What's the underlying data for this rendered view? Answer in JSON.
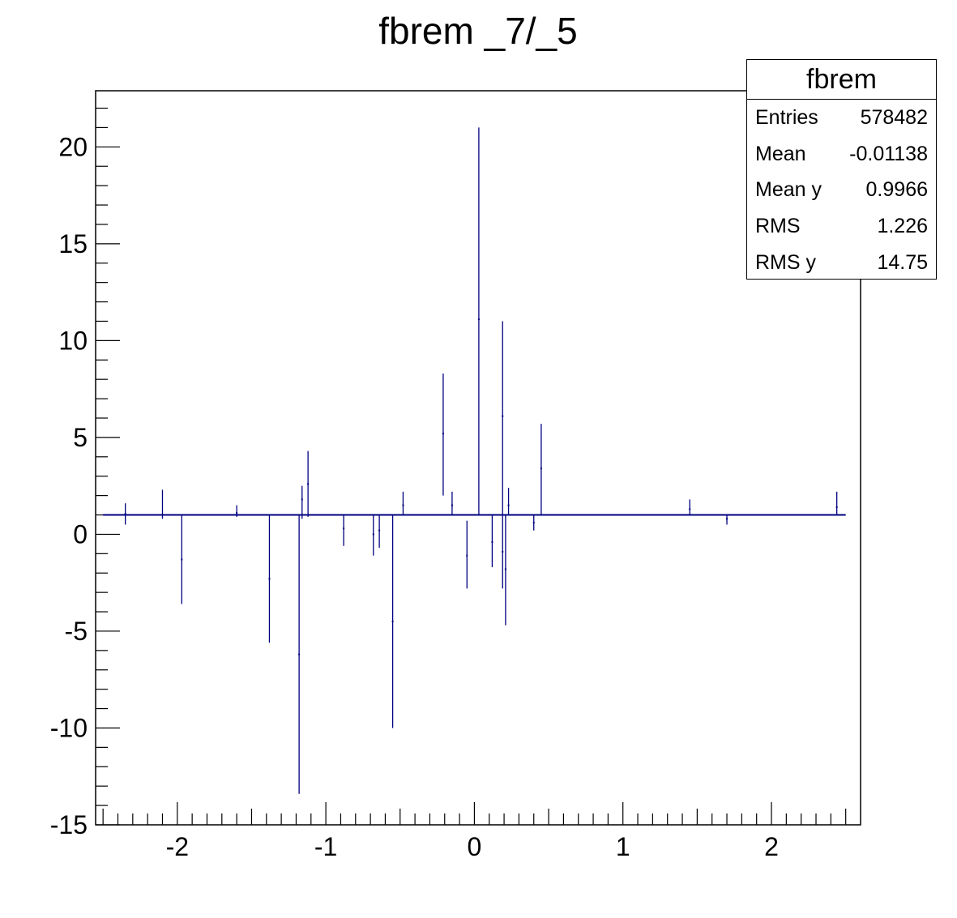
{
  "chart_data": {
    "type": "scatter",
    "title": "fbrem _7/_5",
    "xlabel": "",
    "ylabel": "",
    "xlim": [
      -2.55,
      2.6
    ],
    "ylim": [
      -15,
      22.9
    ],
    "x_ticks": [
      -2,
      -1,
      0,
      1,
      2
    ],
    "x_tick_labels": [
      "-2",
      "-1",
      "0",
      "1",
      "2"
    ],
    "y_ticks": [
      -15,
      -10,
      -5,
      0,
      5,
      10,
      15,
      20
    ],
    "y_tick_labels": [
      "-15",
      "-10",
      "-5",
      "0",
      "5",
      "10",
      "15",
      "20"
    ],
    "grid": false,
    "baseline": {
      "x_start": -2.5,
      "x_end": 2.5,
      "y": 1.0
    },
    "series": [
      {
        "color": "#000080",
        "points": [
          {
            "x": -2.35,
            "y": 1.05,
            "ymin": 0.5,
            "ymax": 1.6
          },
          {
            "x": -2.1,
            "y": 1.0,
            "ymin": 0.8,
            "ymax": 2.3
          },
          {
            "x": -1.97,
            "y": -1.3,
            "ymin": -3.6,
            "ymax": 1.0
          },
          {
            "x": -1.6,
            "y": 1.1,
            "ymin": 0.9,
            "ymax": 1.5
          },
          {
            "x": -1.38,
            "y": -2.3,
            "ymin": -5.6,
            "ymax": 1.0
          },
          {
            "x": -1.18,
            "y": -6.2,
            "ymin": -13.4,
            "ymax": 1.0
          },
          {
            "x": -1.16,
            "y": 1.8,
            "ymin": 0.8,
            "ymax": 2.5
          },
          {
            "x": -1.12,
            "y": 2.6,
            "ymin": 0.9,
            "ymax": 4.3
          },
          {
            "x": -0.88,
            "y": 0.3,
            "ymin": -0.6,
            "ymax": 1.0
          },
          {
            "x": -0.68,
            "y": 0.0,
            "ymin": -1.1,
            "ymax": 1.0
          },
          {
            "x": -0.64,
            "y": 0.2,
            "ymin": -0.7,
            "ymax": 1.0
          },
          {
            "x": -0.55,
            "y": -4.5,
            "ymin": -10.0,
            "ymax": 1.0
          },
          {
            "x": -0.48,
            "y": 1.5,
            "ymin": 1.0,
            "ymax": 2.2
          },
          {
            "x": -0.21,
            "y": 5.2,
            "ymin": 2.0,
            "ymax": 8.3
          },
          {
            "x": -0.15,
            "y": 1.5,
            "ymin": 1.0,
            "ymax": 2.2
          },
          {
            "x": -0.05,
            "y": -1.1,
            "ymin": -2.8,
            "ymax": 0.7
          },
          {
            "x": 0.03,
            "y": 11.1,
            "ymin": 1.0,
            "ymax": 21.0
          },
          {
            "x": 0.12,
            "y": -0.4,
            "ymin": -1.7,
            "ymax": 1.0
          },
          {
            "x": 0.19,
            "y": 6.1,
            "ymin": 1.0,
            "ymax": 11.0
          },
          {
            "x": 0.19,
            "y": -0.9,
            "ymin": -2.8,
            "ymax": 1.0
          },
          {
            "x": 0.21,
            "y": -1.8,
            "ymin": -4.7,
            "ymax": 1.0
          },
          {
            "x": 0.23,
            "y": 1.5,
            "ymin": 1.0,
            "ymax": 2.4
          },
          {
            "x": 0.45,
            "y": 3.4,
            "ymin": 1.0,
            "ymax": 5.7
          },
          {
            "x": 0.4,
            "y": 0.6,
            "ymin": 0.2,
            "ymax": 1.0
          },
          {
            "x": 1.45,
            "y": 1.3,
            "ymin": 1.0,
            "ymax": 1.8
          },
          {
            "x": 1.7,
            "y": 0.8,
            "ymin": 0.5,
            "ymax": 1.0
          },
          {
            "x": 2.44,
            "y": 1.4,
            "ymin": 1.0,
            "ymax": 2.2
          }
        ]
      }
    ],
    "stats": {
      "name": "fbrem",
      "rows": [
        {
          "label": "Entries",
          "value": "578482"
        },
        {
          "label": "Mean",
          "value": "-0.01138"
        },
        {
          "label": "Mean y",
          "value": "0.9966"
        },
        {
          "label": "RMS",
          "value": "1.226"
        },
        {
          "label": "RMS y",
          "value": "14.75"
        }
      ],
      "placement": "top-right"
    }
  }
}
